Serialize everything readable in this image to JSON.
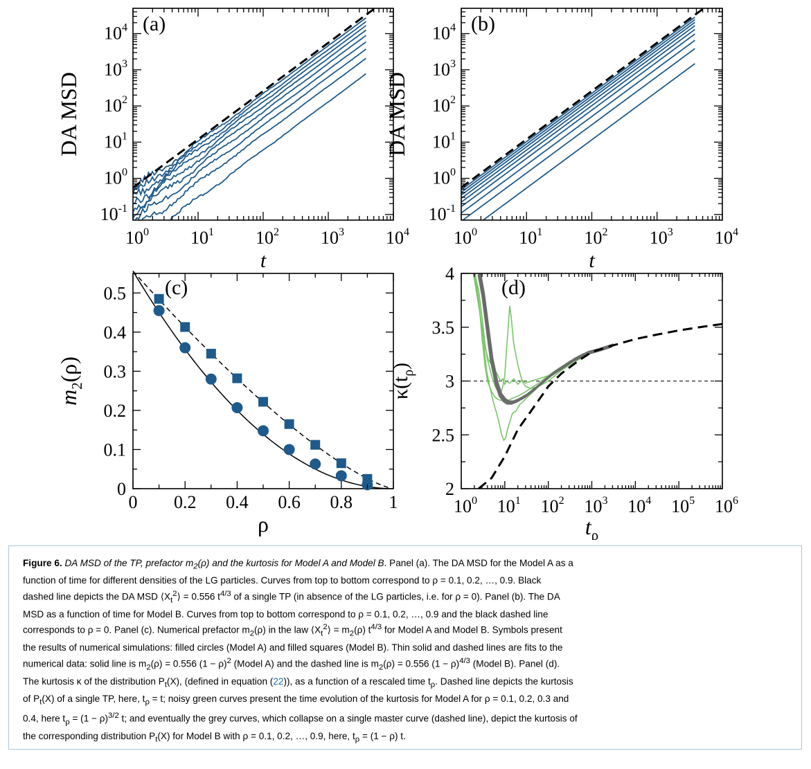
{
  "chart_data": [
    {
      "type": "line",
      "panel": "(a)",
      "ylabel": "DA MSD",
      "xlabel": "t",
      "xscale": "log",
      "yscale": "log",
      "xlim": [
        1,
        10000
      ],
      "ylim": [
        0.07,
        50000
      ],
      "x_ticks": [
        "1",
        "10",
        "100",
        "1000",
        "10000"
      ],
      "x_tick_labels": [
        {
          "b": "10",
          "e": "0"
        },
        {
          "b": "10",
          "e": "1"
        },
        {
          "b": "10",
          "e": "2"
        },
        {
          "b": "10",
          "e": "3"
        },
        {
          "b": "10",
          "e": "4"
        }
      ],
      "y_tick_labels": [
        {
          "b": "10",
          "e": "-1"
        },
        {
          "b": "10",
          "e": "0"
        },
        {
          "b": "10",
          "e": "1"
        },
        {
          "b": "10",
          "e": "2"
        },
        {
          "b": "10",
          "e": "3"
        },
        {
          "b": "10",
          "e": "4"
        }
      ],
      "series": [
        {
          "rho": 0.1,
          "prefactor": 0.46,
          "style": "solid",
          "color": "#1f5a8a"
        },
        {
          "rho": 0.2,
          "prefactor": 0.36,
          "style": "solid",
          "color": "#1f5a8a"
        },
        {
          "rho": 0.3,
          "prefactor": 0.28,
          "style": "solid",
          "color": "#1f5a8a"
        },
        {
          "rho": 0.4,
          "prefactor": 0.21,
          "style": "solid",
          "color": "#1f5a8a"
        },
        {
          "rho": 0.5,
          "prefactor": 0.15,
          "style": "solid",
          "color": "#1f5a8a"
        },
        {
          "rho": 0.6,
          "prefactor": 0.1,
          "style": "solid",
          "color": "#1f5a8a"
        },
        {
          "rho": 0.7,
          "prefactor": 0.063,
          "style": "solid",
          "color": "#1f5a8a"
        },
        {
          "rho": 0.8,
          "prefactor": 0.035,
          "style": "solid",
          "color": "#1f5a8a"
        },
        {
          "rho": 0.9,
          "prefactor": 0.013,
          "style": "solid",
          "color": "#1f5a8a"
        },
        {
          "rho": 0,
          "prefactor": 0.556,
          "style": "dashed",
          "color": "#000000"
        }
      ],
      "exponent": "4/3"
    },
    {
      "type": "line",
      "panel": "(b)",
      "ylabel": "DA MSD",
      "xlabel": "t",
      "xscale": "log",
      "yscale": "log",
      "xlim": [
        1,
        10000
      ],
      "ylim": [
        0.07,
        50000
      ],
      "x_tick_labels": [
        {
          "b": "10",
          "e": "0"
        },
        {
          "b": "10",
          "e": "1"
        },
        {
          "b": "10",
          "e": "2"
        },
        {
          "b": "10",
          "e": "3"
        },
        {
          "b": "10",
          "e": "4"
        }
      ],
      "y_tick_labels": [
        {
          "b": "10",
          "e": "-1"
        },
        {
          "b": "10",
          "e": "0"
        },
        {
          "b": "10",
          "e": "1"
        },
        {
          "b": "10",
          "e": "2"
        },
        {
          "b": "10",
          "e": "3"
        },
        {
          "b": "10",
          "e": "4"
        }
      ],
      "series": [
        {
          "rho": 0.1,
          "prefactor": 0.48,
          "style": "solid",
          "color": "#1f5a8a"
        },
        {
          "rho": 0.2,
          "prefactor": 0.41,
          "style": "solid",
          "color": "#1f5a8a"
        },
        {
          "rho": 0.3,
          "prefactor": 0.345,
          "style": "solid",
          "color": "#1f5a8a"
        },
        {
          "rho": 0.4,
          "prefactor": 0.28,
          "style": "solid",
          "color": "#1f5a8a"
        },
        {
          "rho": 0.5,
          "prefactor": 0.22,
          "style": "solid",
          "color": "#1f5a8a"
        },
        {
          "rho": 0.6,
          "prefactor": 0.165,
          "style": "solid",
          "color": "#1f5a8a"
        },
        {
          "rho": 0.7,
          "prefactor": 0.11,
          "style": "solid",
          "color": "#1f5a8a"
        },
        {
          "rho": 0.8,
          "prefactor": 0.065,
          "style": "solid",
          "color": "#1f5a8a"
        },
        {
          "rho": 0.9,
          "prefactor": 0.025,
          "style": "solid",
          "color": "#1f5a8a"
        },
        {
          "rho": 0,
          "prefactor": 0.556,
          "style": "dashed",
          "color": "#000000"
        }
      ],
      "exponent": "4/3"
    },
    {
      "type": "scatter",
      "panel": "(c)",
      "ylabel_base": "m",
      "ylabel_sub": "2",
      "ylabel_tail": "(ρ)",
      "xlabel": "ρ",
      "xlim": [
        0,
        1
      ],
      "ylim": [
        0,
        0.55
      ],
      "x_tick_labels": [
        "0",
        "0.2",
        "0.4",
        "0.6",
        "0.8",
        "1"
      ],
      "y_tick_labels": [
        "0",
        "0.1",
        "0.2",
        "0.3",
        "0.4",
        "0.5"
      ],
      "series": [
        {
          "name": "Model A",
          "marker": "circle",
          "color": "#1f5a8a",
          "x": [
            0.1,
            0.2,
            0.3,
            0.4,
            0.5,
            0.6,
            0.7,
            0.8,
            0.9
          ],
          "y": [
            0.455,
            0.36,
            0.28,
            0.207,
            0.148,
            0.1,
            0.063,
            0.033,
            0.01
          ]
        },
        {
          "name": "Model B",
          "marker": "square",
          "color": "#1f5a8a",
          "x": [
            0.1,
            0.2,
            0.3,
            0.4,
            0.5,
            0.6,
            0.7,
            0.8,
            0.9
          ],
          "y": [
            0.485,
            0.413,
            0.345,
            0.282,
            0.222,
            0.165,
            0.112,
            0.065,
            0.025
          ]
        }
      ],
      "fits": [
        {
          "name": "Model A fit",
          "style": "solid",
          "prefactor": 0.556,
          "exponent": 2
        },
        {
          "name": "Model B fit",
          "style": "dashed",
          "prefactor": 0.556,
          "exponent": 1.3333
        }
      ]
    },
    {
      "type": "line",
      "panel": "(d)",
      "ylabel_base": "κ(t",
      "ylabel_sub": "ρ",
      "ylabel_tail": ")",
      "xlabel_base": "t",
      "xlabel_sub": "ρ",
      "xscale": "log",
      "xlim": [
        1,
        1000000
      ],
      "ylim": [
        2,
        4
      ],
      "x_tick_labels": [
        {
          "b": "10",
          "e": "0"
        },
        {
          "b": "10",
          "e": "1"
        },
        {
          "b": "10",
          "e": "2"
        },
        {
          "b": "10",
          "e": "3"
        },
        {
          "b": "10",
          "e": "4"
        },
        {
          "b": "10",
          "e": "5"
        },
        {
          "b": "10",
          "e": "6"
        }
      ],
      "y_tick_labels": [
        "2",
        "2.5",
        "3",
        "3.5",
        "4"
      ],
      "reference_line": {
        "y": 3,
        "style": "dashed"
      },
      "single_tp_curve": {
        "style": "dashed",
        "color": "#000000",
        "x": [
          2.5,
          5,
          10,
          20,
          40,
          70,
          100,
          200,
          500,
          1000,
          3000,
          10000,
          30000,
          100000,
          300000,
          1000000
        ],
        "y": [
          2.0,
          2.1,
          2.3,
          2.55,
          2.72,
          2.86,
          2.95,
          3.07,
          3.19,
          3.27,
          3.33,
          3.39,
          3.43,
          3.47,
          3.5,
          3.53
        ]
      },
      "model_b_master_curve": {
        "color": "#6b6b6b",
        "x": [
          2.6,
          3.2,
          4,
          5,
          6.5,
          8,
          10,
          12,
          15,
          20,
          30,
          50,
          80,
          120,
          200,
          400,
          800,
          1500,
          3000
        ],
        "y": [
          4.0,
          3.8,
          3.5,
          3.2,
          2.98,
          2.87,
          2.82,
          2.8,
          2.8,
          2.82,
          2.86,
          2.93,
          3.0,
          3.06,
          3.12,
          3.2,
          3.26,
          3.29,
          3.33
        ]
      },
      "model_a_curves": [
        {
          "color": "#7ac46a",
          "rho": 0.1,
          "x": [
            1.9,
            2.2,
            2.6,
            3,
            3.5,
            4,
            5,
            6,
            7,
            8,
            9,
            10,
            12,
            15,
            20,
            30,
            50,
            80,
            150,
            300,
            600,
            1200,
            2500
          ],
          "y": [
            4.0,
            3.9,
            3.7,
            3.4,
            3.15,
            3.0,
            2.9,
            2.85,
            2.83,
            2.82,
            2.82,
            2.83,
            2.82,
            2.84,
            2.86,
            2.9,
            2.96,
            3.02,
            3.1,
            3.18,
            3.25,
            3.29,
            3.33
          ]
        },
        {
          "color": "#7ac46a",
          "rho": 0.2,
          "x": [
            1.9,
            2.4,
            3,
            3.6,
            4.2,
            5,
            6,
            7,
            8,
            9,
            10,
            11,
            13,
            16,
            20,
            25,
            30,
            40,
            60,
            100,
            200,
            400,
            900,
            2000
          ],
          "y": [
            4.0,
            3.75,
            3.5,
            3.3,
            3.2,
            3.15,
            3.1,
            3.05,
            3.0,
            3.02,
            2.97,
            3.0,
            2.98,
            3.02,
            2.97,
            3.01,
            2.98,
            3.0,
            3.02,
            3.05,
            3.12,
            3.2,
            3.27,
            3.31
          ]
        },
        {
          "color": "#7ac46a",
          "rho": 0.3,
          "x": [
            2.0,
            2.5,
            3,
            3.5,
            4,
            5,
            6,
            7,
            8,
            9,
            10,
            11,
            12,
            13,
            14,
            16,
            20,
            25,
            30,
            40,
            60,
            100,
            200,
            500,
            1200
          ],
          "y": [
            4.0,
            3.85,
            3.6,
            3.35,
            3.2,
            3.05,
            2.95,
            2.9,
            2.88,
            2.95,
            3.05,
            3.3,
            3.5,
            3.7,
            3.6,
            3.35,
            3.15,
            3.0,
            2.95,
            2.93,
            2.95,
            3.0,
            3.1,
            3.2,
            3.28
          ]
        },
        {
          "color": "#7ac46a",
          "rho": 0.4,
          "x": [
            2.1,
            2.6,
            3.2,
            3.8,
            4.5,
            5.5,
            6.5,
            7.5,
            8.5,
            9.5,
            10.5,
            11.5,
            13,
            15,
            18,
            22,
            28,
            35,
            45,
            60,
            80,
            120,
            200,
            400,
            900
          ],
          "y": [
            4.0,
            3.7,
            3.4,
            3.1,
            2.95,
            2.8,
            2.7,
            2.6,
            2.5,
            2.45,
            2.47,
            2.55,
            2.62,
            2.7,
            2.72,
            2.78,
            2.82,
            2.86,
            2.9,
            2.95,
            3.0,
            3.05,
            3.12,
            3.2,
            3.28
          ]
        }
      ]
    }
  ],
  "caption": {
    "label": "Figure 6.",
    "title_a": "DA MSD of the TP, prefactor ",
    "title_m": "m",
    "title_sub": "2",
    "title_rho": "(ρ)",
    "title_b": " and the kurtosis for Model A and Model B",
    "line1_tail": ". Panel (a). The DA MSD for the Model A as a",
    "line2": "function of time for different densities of the LG particles. Curves from top to bottom correspond to ρ = 0.1, 0.2, …, 0.9. Black",
    "line3_a": "dashed line depicts the DA MSD ⟨X",
    "line3_x_sub": "t",
    "line3_x_sup": "2",
    "line3_b": "⟩ = 0.556 t",
    "line3_exp": "4/3",
    "line3_c": " of a single TP (in absence of the LG particles, i.e. for ρ = 0). Panel (b). The DA",
    "line4": "MSD as a function of time for Model B. Curves from top to bottom correspond to ρ = 0.1, 0.2, …, 0.9 and the black dashed line",
    "line5_a": "corresponds to ρ = 0. Panel (c). Numerical prefactor m",
    "line5_sub": "2",
    "line5_b": "(ρ) in the law ⟨X",
    "line5_x_sub": "t",
    "line5_x_sup": "2",
    "line5_c": "⟩ = m",
    "line5_sub2": "2",
    "line5_d": "(ρ) t",
    "line5_exp": "4/3",
    "line5_e": " for Model A and Model B. Symbols present",
    "line6": "the results of numerical simulations: filled circles (Model A) and filled squares (Model B). Thin solid and dashed lines are fits to the",
    "line7_a": "numerical data: solid line is m",
    "line7_sub": "2",
    "line7_b": "(ρ) = 0.556 (1 − ρ)",
    "line7_exp": "2",
    "line7_c": " (Model A) and the dashed line is m",
    "line7_sub2": "2",
    "line7_d": "(ρ) = 0.556 (1 − ρ)",
    "line7_exp2": "4/3",
    "line7_e": " (Model B). Panel (d).",
    "line8_a": "The kurtosis κ of the distribution P",
    "line8_sub": "t",
    "line8_b": "(X), (defined in equation (",
    "line8_ref": "22",
    "line8_c": ")), as a function of a rescaled time t",
    "line8_sub2": "ρ",
    "line8_d": ". Dashed line depicts the kurtosis",
    "line9_a": "of P",
    "line9_sub": "t",
    "line9_b": "(X) of a single TP, here, t",
    "line9_sub2": "ρ",
    "line9_c": " = t; noisy green curves present the time evolution of the kurtosis for Model A for ρ = 0.1, 0.2, 0.3 and",
    "line10_a": "0.4, here t",
    "line10_sub": "ρ",
    "line10_b": " = (1 − ρ)",
    "line10_exp": "3/2",
    "line10_c": " t; and eventually the grey curves, which collapse on a single master curve (dashed line), depict the kurtosis of",
    "line11_a": "the corresponding distribution P",
    "line11_sub": "t",
    "line11_b": "(X) for Model B with ρ = 0.1, 0.2, …, 0.9, here, t",
    "line11_sub2": "ρ",
    "line11_c": " = (1 − ρ) t."
  }
}
